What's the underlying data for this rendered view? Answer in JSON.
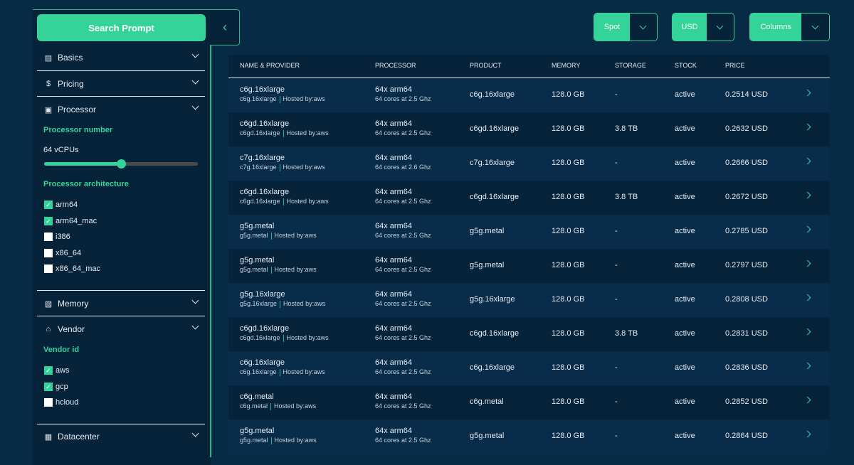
{
  "sidebar": {
    "search_button": "Search Prompt",
    "sections": {
      "basics": "Basics",
      "pricing": "Pricing",
      "processor": "Processor",
      "memory": "Memory",
      "vendor": "Vendor",
      "datacenter": "Datacenter"
    },
    "processor_number_label": "Processor number",
    "vcpu_value": "64 vCPUs",
    "vcpu_slider_percent": 50,
    "architecture_label": "Processor architecture",
    "architectures": [
      {
        "label": "arm64",
        "checked": true
      },
      {
        "label": "arm64_mac",
        "checked": true
      },
      {
        "label": "i386",
        "checked": false
      },
      {
        "label": "x86_64",
        "checked": false
      },
      {
        "label": "x86_64_mac",
        "checked": false
      }
    ],
    "vendor_id_label": "Vendor id",
    "vendors": [
      {
        "label": "aws",
        "checked": true
      },
      {
        "label": "gcp",
        "checked": true
      },
      {
        "label": "hcloud",
        "checked": false
      }
    ]
  },
  "toolbar": {
    "spot": "Spot",
    "currency": "USD",
    "columns": "Columns"
  },
  "table": {
    "headers": [
      "NAME & PROVIDER",
      "PROCESSOR",
      "PRODUCT",
      "MEMORY",
      "STORAGE",
      "STOCK",
      "PRICE"
    ],
    "hosted_prefix": "Hosted by:",
    "rows": [
      {
        "name": "c6g.16xlarge",
        "provider": "aws",
        "cpu": "64x arm64",
        "cores": "64 cores at 2.5 Ghz",
        "product": "c6g.16xlarge",
        "memory": "128.0 GB",
        "storage": "-",
        "stock": "active",
        "price": "0.2514 USD"
      },
      {
        "name": "c6gd.16xlarge",
        "provider": "aws",
        "cpu": "64x arm64",
        "cores": "64 cores at 2.5 Ghz",
        "product": "c6gd.16xlarge",
        "memory": "128.0 GB",
        "storage": "3.8 TB",
        "stock": "active",
        "price": "0.2632 USD"
      },
      {
        "name": "c7g.16xlarge",
        "provider": "aws",
        "cpu": "64x arm64",
        "cores": "64 cores at 2.6 Ghz",
        "product": "c7g.16xlarge",
        "memory": "128.0 GB",
        "storage": "-",
        "stock": "active",
        "price": "0.2666 USD"
      },
      {
        "name": "c6gd.16xlarge",
        "provider": "aws",
        "cpu": "64x arm64",
        "cores": "64 cores at 2.5 Ghz",
        "product": "c6gd.16xlarge",
        "memory": "128.0 GB",
        "storage": "3.8 TB",
        "stock": "active",
        "price": "0.2672 USD"
      },
      {
        "name": "g5g.metal",
        "provider": "aws",
        "cpu": "64x arm64",
        "cores": "64 cores at 2.5 Ghz",
        "product": "g5g.metal",
        "memory": "128.0 GB",
        "storage": "-",
        "stock": "active",
        "price": "0.2785 USD"
      },
      {
        "name": "g5g.metal",
        "provider": "aws",
        "cpu": "64x arm64",
        "cores": "64 cores at 2.5 Ghz",
        "product": "g5g.metal",
        "memory": "128.0 GB",
        "storage": "-",
        "stock": "active",
        "price": "0.2797 USD"
      },
      {
        "name": "g5g.16xlarge",
        "provider": "aws",
        "cpu": "64x arm64",
        "cores": "64 cores at 2.5 Ghz",
        "product": "g5g.16xlarge",
        "memory": "128.0 GB",
        "storage": "-",
        "stock": "active",
        "price": "0.2808 USD"
      },
      {
        "name": "c6gd.16xlarge",
        "provider": "aws",
        "cpu": "64x arm64",
        "cores": "64 cores at 2.5 Ghz",
        "product": "c6gd.16xlarge",
        "memory": "128.0 GB",
        "storage": "3.8 TB",
        "stock": "active",
        "price": "0.2831 USD"
      },
      {
        "name": "c6g.16xlarge",
        "provider": "aws",
        "cpu": "64x arm64",
        "cores": "64 cores at 2.5 Ghz",
        "product": "c6g.16xlarge",
        "memory": "128.0 GB",
        "storage": "-",
        "stock": "active",
        "price": "0.2836 USD"
      },
      {
        "name": "c6g.metal",
        "provider": "aws",
        "cpu": "64x arm64",
        "cores": "64 cores at 2.5 Ghz",
        "product": "c6g.metal",
        "memory": "128.0 GB",
        "storage": "-",
        "stock": "active",
        "price": "0.2852 USD"
      },
      {
        "name": "g5g.metal",
        "provider": "aws",
        "cpu": "64x arm64",
        "cores": "64 cores at 2.5 Ghz",
        "product": "g5g.metal",
        "memory": "128.0 GB",
        "storage": "-",
        "stock": "active",
        "price": "0.2864 USD"
      }
    ]
  },
  "colors": {
    "accent": "#34d399",
    "background": "#072a45",
    "panel": "#06233a"
  }
}
